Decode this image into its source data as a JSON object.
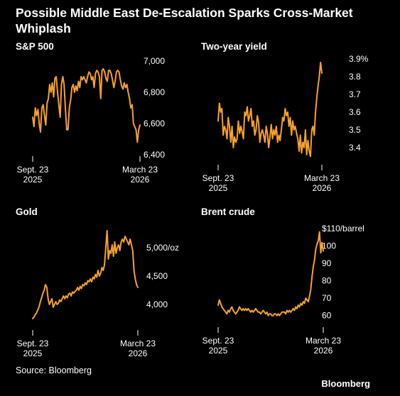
{
  "header": {
    "title": "Possible Middle East De-Escalation Sparks Cross-Market Whiplash"
  },
  "footer": {
    "source": "Source: Bloomberg",
    "brand": "Bloomberg"
  },
  "colors": {
    "background": "#000000",
    "series": "#f7a12b",
    "text": "#ffffff",
    "axis": "#ffffff"
  },
  "chart_data": [
    {
      "type": "line",
      "title": "S&P 500",
      "x_start": "Sept. 23 2025",
      "x_end": "March 23 2026",
      "xticks": [
        {
          "line1": "Sept. 23",
          "line2": "2025",
          "pos": 0.0
        },
        {
          "line1": "March 23",
          "line2": "2026",
          "pos": 1.0
        }
      ],
      "ylim": [
        6400,
        7000
      ],
      "yticks": [
        {
          "value": 6400,
          "label": "6,400"
        },
        {
          "value": 6600,
          "label": "6,600"
        },
        {
          "value": 6800,
          "label": "6,800"
        },
        {
          "value": 7000,
          "label": "7,000"
        }
      ],
      "values": [
        6640,
        6580,
        6700,
        6650,
        6690,
        6600,
        6545,
        6700,
        6720,
        6650,
        6590,
        6730,
        6760,
        6850,
        6800,
        6860,
        6770,
        6890,
        6900,
        6800,
        6720,
        6640,
        6850,
        6900,
        6850,
        6700,
        6560,
        6560,
        6700,
        6750,
        6830,
        6850,
        6800,
        6840,
        6810,
        6870,
        6830,
        6900,
        6880,
        6900,
        6880,
        6860,
        6900,
        6930,
        6920,
        6880,
        6900,
        6830,
        6920,
        6940,
        6930,
        6900,
        6760,
        6940,
        6950,
        6930,
        6890,
        6870,
        6940,
        6940,
        6920,
        6880,
        6830,
        6870,
        6930,
        6940,
        6930,
        6880,
        6840,
        6820,
        6860,
        6830,
        6850,
        6800,
        6760,
        6700,
        6720,
        6600,
        6580,
        6560,
        6480,
        6560,
        6590
      ]
    },
    {
      "type": "line",
      "title": "Two-year yield",
      "x_start": "Sept. 23 2025",
      "x_end": "March 23 2026",
      "xticks": [
        {
          "line1": "Sept. 23",
          "line2": "2025",
          "pos": 0.0
        },
        {
          "line1": "March 23",
          "line2": "2026",
          "pos": 1.0
        }
      ],
      "ylim": [
        3.32,
        3.92
      ],
      "yticks": [
        {
          "value": 3.4,
          "label": "3.4"
        },
        {
          "value": 3.5,
          "label": "3.5"
        },
        {
          "value": 3.6,
          "label": "3.6"
        },
        {
          "value": 3.7,
          "label": "3.7"
        },
        {
          "value": 3.8,
          "label": "3.8"
        },
        {
          "value": 3.9,
          "label": "3.9%"
        }
      ],
      "values": [
        3.55,
        3.65,
        3.6,
        3.62,
        3.47,
        3.52,
        3.5,
        3.45,
        3.57,
        3.52,
        3.43,
        3.52,
        3.4,
        3.46,
        3.43,
        3.45,
        3.55,
        3.48,
        3.52,
        3.49,
        3.45,
        3.6,
        3.58,
        3.63,
        3.55,
        3.58,
        3.62,
        3.52,
        3.55,
        3.47,
        3.5,
        3.58,
        3.54,
        3.43,
        3.48,
        3.5,
        3.47,
        3.43,
        3.52,
        3.48,
        3.4,
        3.46,
        3.53,
        3.45,
        3.5,
        3.47,
        3.52,
        3.43,
        3.47,
        3.44,
        3.5,
        3.57,
        3.55,
        3.62,
        3.58,
        3.6,
        3.52,
        3.57,
        3.47,
        3.55,
        3.5,
        3.52,
        3.48,
        3.45,
        3.38,
        3.47,
        3.37,
        3.43,
        3.4,
        3.5,
        3.36,
        3.44,
        3.38,
        3.35,
        3.5,
        3.52,
        3.47,
        3.6,
        3.68,
        3.75,
        3.8,
        3.88,
        3.82
      ]
    },
    {
      "type": "line",
      "title": "Gold",
      "x_start": "Sept. 23 2025",
      "x_end": "March 23 2026",
      "xticks": [
        {
          "line1": "Sept. 23",
          "line2": "2025",
          "pos": 0.0
        },
        {
          "line1": "March 23",
          "line2": "2026",
          "pos": 1.0
        }
      ],
      "ylim": [
        3600,
        5500
      ],
      "yticks": [
        {
          "value": 4000,
          "label": "4,000"
        },
        {
          "value": 4500,
          "label": "4,500"
        },
        {
          "value": 5000,
          "label": "5,000/oz"
        }
      ],
      "values": [
        3750,
        3780,
        3820,
        3850,
        3900,
        3960,
        4050,
        4120,
        4200,
        4250,
        4350,
        4300,
        4100,
        4000,
        4050,
        4100,
        3950,
        4000,
        4050,
        4000,
        4020,
        4080,
        4050,
        4100,
        4150,
        4100,
        4150,
        4120,
        4180,
        4200,
        4150,
        4220,
        4200,
        4230,
        4250,
        4300,
        4250,
        4320,
        4280,
        4350,
        4330,
        4380,
        4350,
        4420,
        4400,
        4450,
        4400,
        4480,
        4450,
        4530,
        4480,
        4600,
        4500,
        4550,
        4650,
        4600,
        4700,
        5000,
        5300,
        4800,
        4950,
        4900,
        5050,
        4850,
        5100,
        4900,
        5000,
        5050,
        4950,
        5100,
        5150,
        5100,
        5200,
        5150,
        5100,
        5050,
        5150,
        5050,
        4950,
        4600,
        4450,
        4350,
        4300
      ]
    },
    {
      "type": "line",
      "title": "Brent crude",
      "x_start": "Sept. 23 2025",
      "x_end": "March 23 2026",
      "xticks": [
        {
          "line1": "Sept. 23",
          "line2": "2025",
          "pos": 0.0
        },
        {
          "line1": "March 23",
          "line2": "2026",
          "pos": 1.0
        }
      ],
      "ylim": [
        55,
        112
      ],
      "yticks": [
        {
          "value": 60,
          "label": "60"
        },
        {
          "value": 70,
          "label": "70"
        },
        {
          "value": 80,
          "label": "80"
        },
        {
          "value": 90,
          "label": "90"
        },
        {
          "value": 100,
          "label": "100"
        },
        {
          "value": 110,
          "label": "$110/barrel"
        }
      ],
      "values": [
        66,
        69,
        67,
        65,
        64,
        63,
        62,
        61,
        63,
        62,
        64,
        65,
        63,
        62,
        61,
        62,
        63,
        65,
        64,
        63,
        64,
        63,
        64,
        63,
        64,
        63,
        62,
        63,
        62,
        63,
        64,
        63,
        62,
        62,
        61,
        62,
        63,
        62,
        61,
        62,
        60,
        61,
        61,
        60,
        60,
        61,
        61,
        60,
        61,
        60,
        61,
        62,
        62,
        62,
        61,
        63,
        62,
        63,
        62,
        63,
        64,
        63,
        65,
        64,
        66,
        65,
        67,
        66,
        68,
        67,
        70,
        69,
        68,
        71,
        75,
        82,
        88,
        92,
        98,
        101,
        103,
        108,
        96,
        102,
        97
      ]
    }
  ]
}
